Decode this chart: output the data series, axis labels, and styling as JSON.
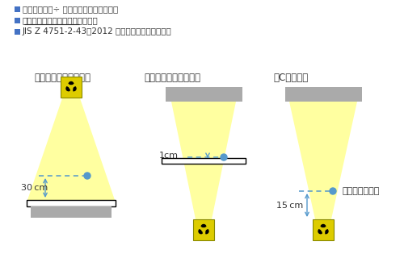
{
  "legend_items": [
    "「面積線量」÷ 照射面積＝「入射線量」",
    "患者照射基準点における照射面積",
    "JIS Z 4751-2-43：2012 における患者照射基準点"
  ],
  "label_over": "オーバーチューブ",
  "label_under": "アンダーチューブ",
  "label_carm": "Cアーム",
  "label_30cm": "30 cm",
  "label_1cm": "1cm",
  "label_15cm": "15 cm",
  "label_isocenter": "アイソセンター",
  "beam_color": "#FFFFA0",
  "dot_color": "#5599CC",
  "arrow_color": "#5599CC",
  "table_color": "#AAAAAA",
  "legend_color": "#4472C4",
  "text_color": "#333333",
  "bg_color": "#FFFFFF",
  "rad_yellow": "#DDCC00",
  "rad_border": "#888800"
}
